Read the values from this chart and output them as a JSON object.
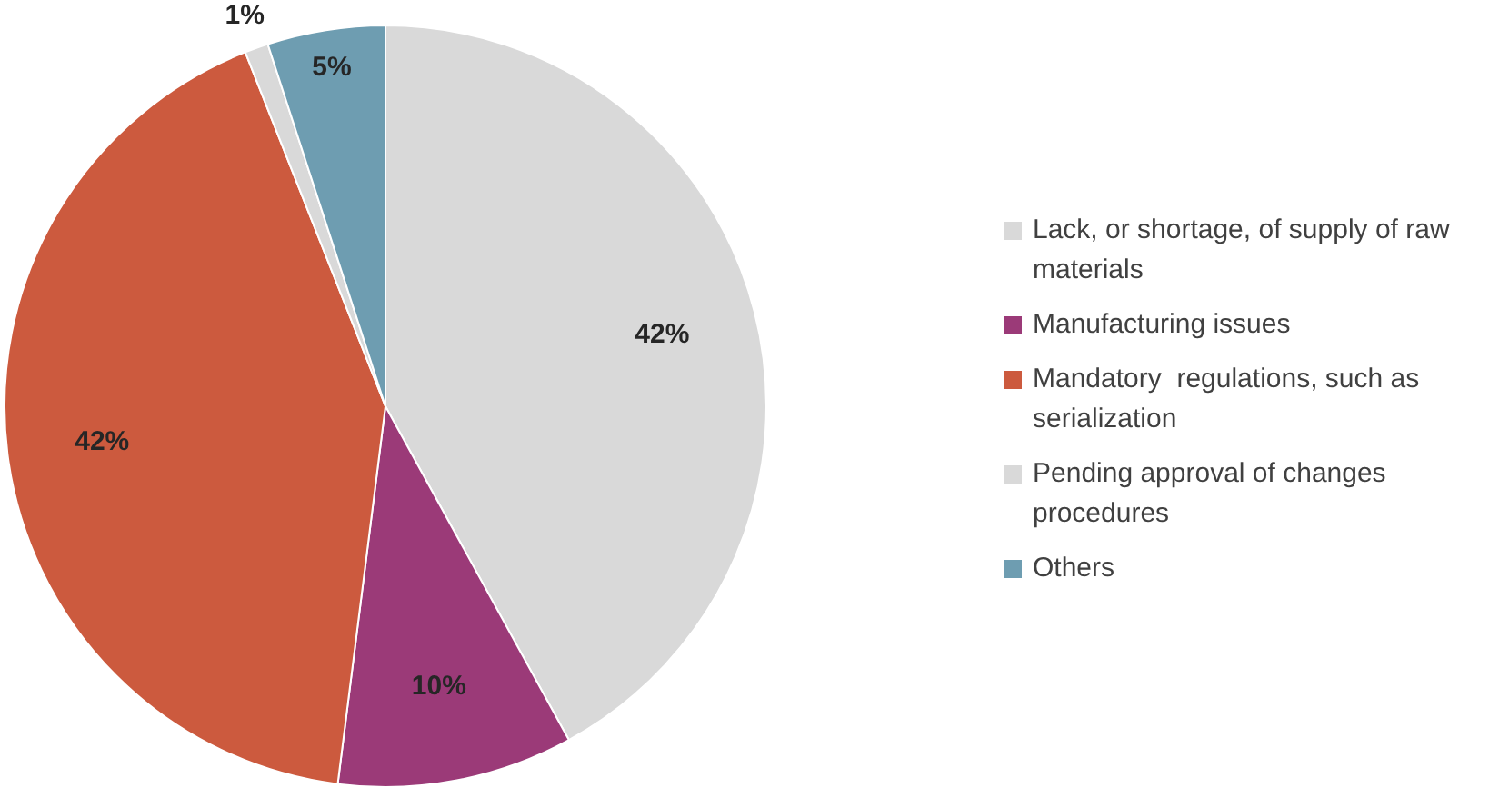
{
  "chart_data": {
    "type": "pie",
    "categories": [
      "Lack, or shortage, of supply of raw materials",
      "Manufacturing issues",
      "Mandatory  regulations, such as serialization",
      "Pending approval of changes procedures",
      "Others"
    ],
    "values": [
      42,
      10,
      42,
      1,
      5
    ],
    "colors": [
      "#d9d9d9",
      "#9b3a78",
      "#cc5a3e",
      "#d9d9d9",
      "#6e9db1"
    ],
    "value_labels": [
      "42%",
      "10%",
      "42%",
      "1%",
      "5%"
    ],
    "legend": "right"
  }
}
